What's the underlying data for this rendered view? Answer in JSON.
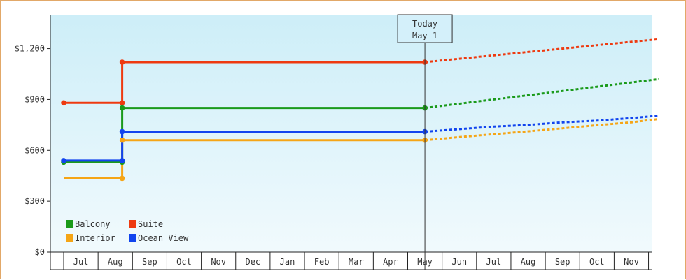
{
  "chart_data": {
    "type": "line",
    "title": "",
    "xlabel": "",
    "ylabel": "",
    "ylim": [
      0,
      1400
    ],
    "y_ticks": [
      {
        "value": 0,
        "label": "$0"
      },
      {
        "value": 300,
        "label": "$300"
      },
      {
        "value": 600,
        "label": "$600"
      },
      {
        "value": 900,
        "label": "$900"
      },
      {
        "value": 1200,
        "label": "$1,200"
      }
    ],
    "x_categories": [
      "Jul",
      "Aug",
      "Sep",
      "Oct",
      "Nov",
      "Dec",
      "Jan",
      "Feb",
      "Mar",
      "Apr",
      "May",
      "Jun",
      "Jul",
      "Aug",
      "Sep",
      "Oct",
      "Nov"
    ],
    "today_marker": {
      "line1": "Today",
      "line2": "May 1",
      "x": 10
    },
    "grid": false,
    "legend_position": "bottom-left",
    "series": [
      {
        "name": "Balcony",
        "color": "#1a9a1a",
        "actual": [
          [
            -0.5,
            530
          ],
          [
            1.2,
            530
          ],
          [
            1.2,
            850
          ],
          [
            10,
            850
          ]
        ],
        "projected": [
          [
            10,
            850
          ],
          [
            11,
            875
          ],
          [
            12,
            900
          ],
          [
            13,
            925
          ],
          [
            14,
            950
          ],
          [
            15,
            975
          ],
          [
            16,
            1000
          ],
          [
            16.8,
            1020
          ]
        ]
      },
      {
        "name": "Suite",
        "color": "#ee3a10",
        "actual": [
          [
            -0.5,
            880
          ],
          [
            1.2,
            880
          ],
          [
            1.2,
            1120
          ],
          [
            10,
            1120
          ]
        ],
        "projected": [
          [
            10,
            1120
          ],
          [
            11,
            1140
          ],
          [
            12,
            1160
          ],
          [
            13,
            1180
          ],
          [
            14,
            1200
          ],
          [
            15,
            1220
          ],
          [
            16,
            1240
          ],
          [
            16.8,
            1255
          ]
        ]
      },
      {
        "name": "Interior",
        "color": "#f5a516",
        "actual": [
          [
            -0.5,
            435
          ],
          [
            1.2,
            435
          ],
          [
            1.2,
            660
          ],
          [
            10,
            660
          ]
        ],
        "projected": [
          [
            10,
            660
          ],
          [
            11,
            678
          ],
          [
            12,
            695
          ],
          [
            13,
            712
          ],
          [
            14,
            730
          ],
          [
            15,
            748
          ],
          [
            16,
            765
          ],
          [
            16.8,
            785
          ]
        ]
      },
      {
        "name": "Ocean View",
        "color": "#1144ee",
        "actual": [
          [
            -0.5,
            540
          ],
          [
            1.2,
            540
          ],
          [
            1.2,
            710
          ],
          [
            10,
            710
          ]
        ],
        "projected": [
          [
            10,
            710
          ],
          [
            11,
            725
          ],
          [
            12,
            740
          ],
          [
            13,
            750
          ],
          [
            14,
            765
          ],
          [
            15,
            775
          ],
          [
            16,
            790
          ],
          [
            16.8,
            805
          ]
        ]
      }
    ],
    "markers": [
      {
        "series": "Balcony",
        "points": [
          [
            -0.5,
            530
          ],
          [
            1.2,
            530
          ],
          [
            1.2,
            850
          ],
          [
            10,
            850
          ]
        ]
      },
      {
        "series": "Suite",
        "points": [
          [
            -0.5,
            880
          ],
          [
            1.2,
            880
          ],
          [
            1.2,
            1120
          ],
          [
            10,
            1120
          ]
        ]
      },
      {
        "series": "Interior",
        "points": [
          [
            1.2,
            435
          ],
          [
            1.2,
            660
          ],
          [
            10,
            660
          ]
        ]
      },
      {
        "series": "Ocean View",
        "points": [
          [
            -0.5,
            540
          ],
          [
            1.2,
            540
          ],
          [
            1.2,
            710
          ],
          [
            10,
            710
          ]
        ]
      }
    ]
  },
  "legend": [
    {
      "label": "Balcony",
      "color": "#1a9a1a"
    },
    {
      "label": "Suite",
      "color": "#ee3a10"
    },
    {
      "label": "Interior",
      "color": "#f5a516"
    },
    {
      "label": "Ocean View",
      "color": "#1144ee"
    }
  ]
}
